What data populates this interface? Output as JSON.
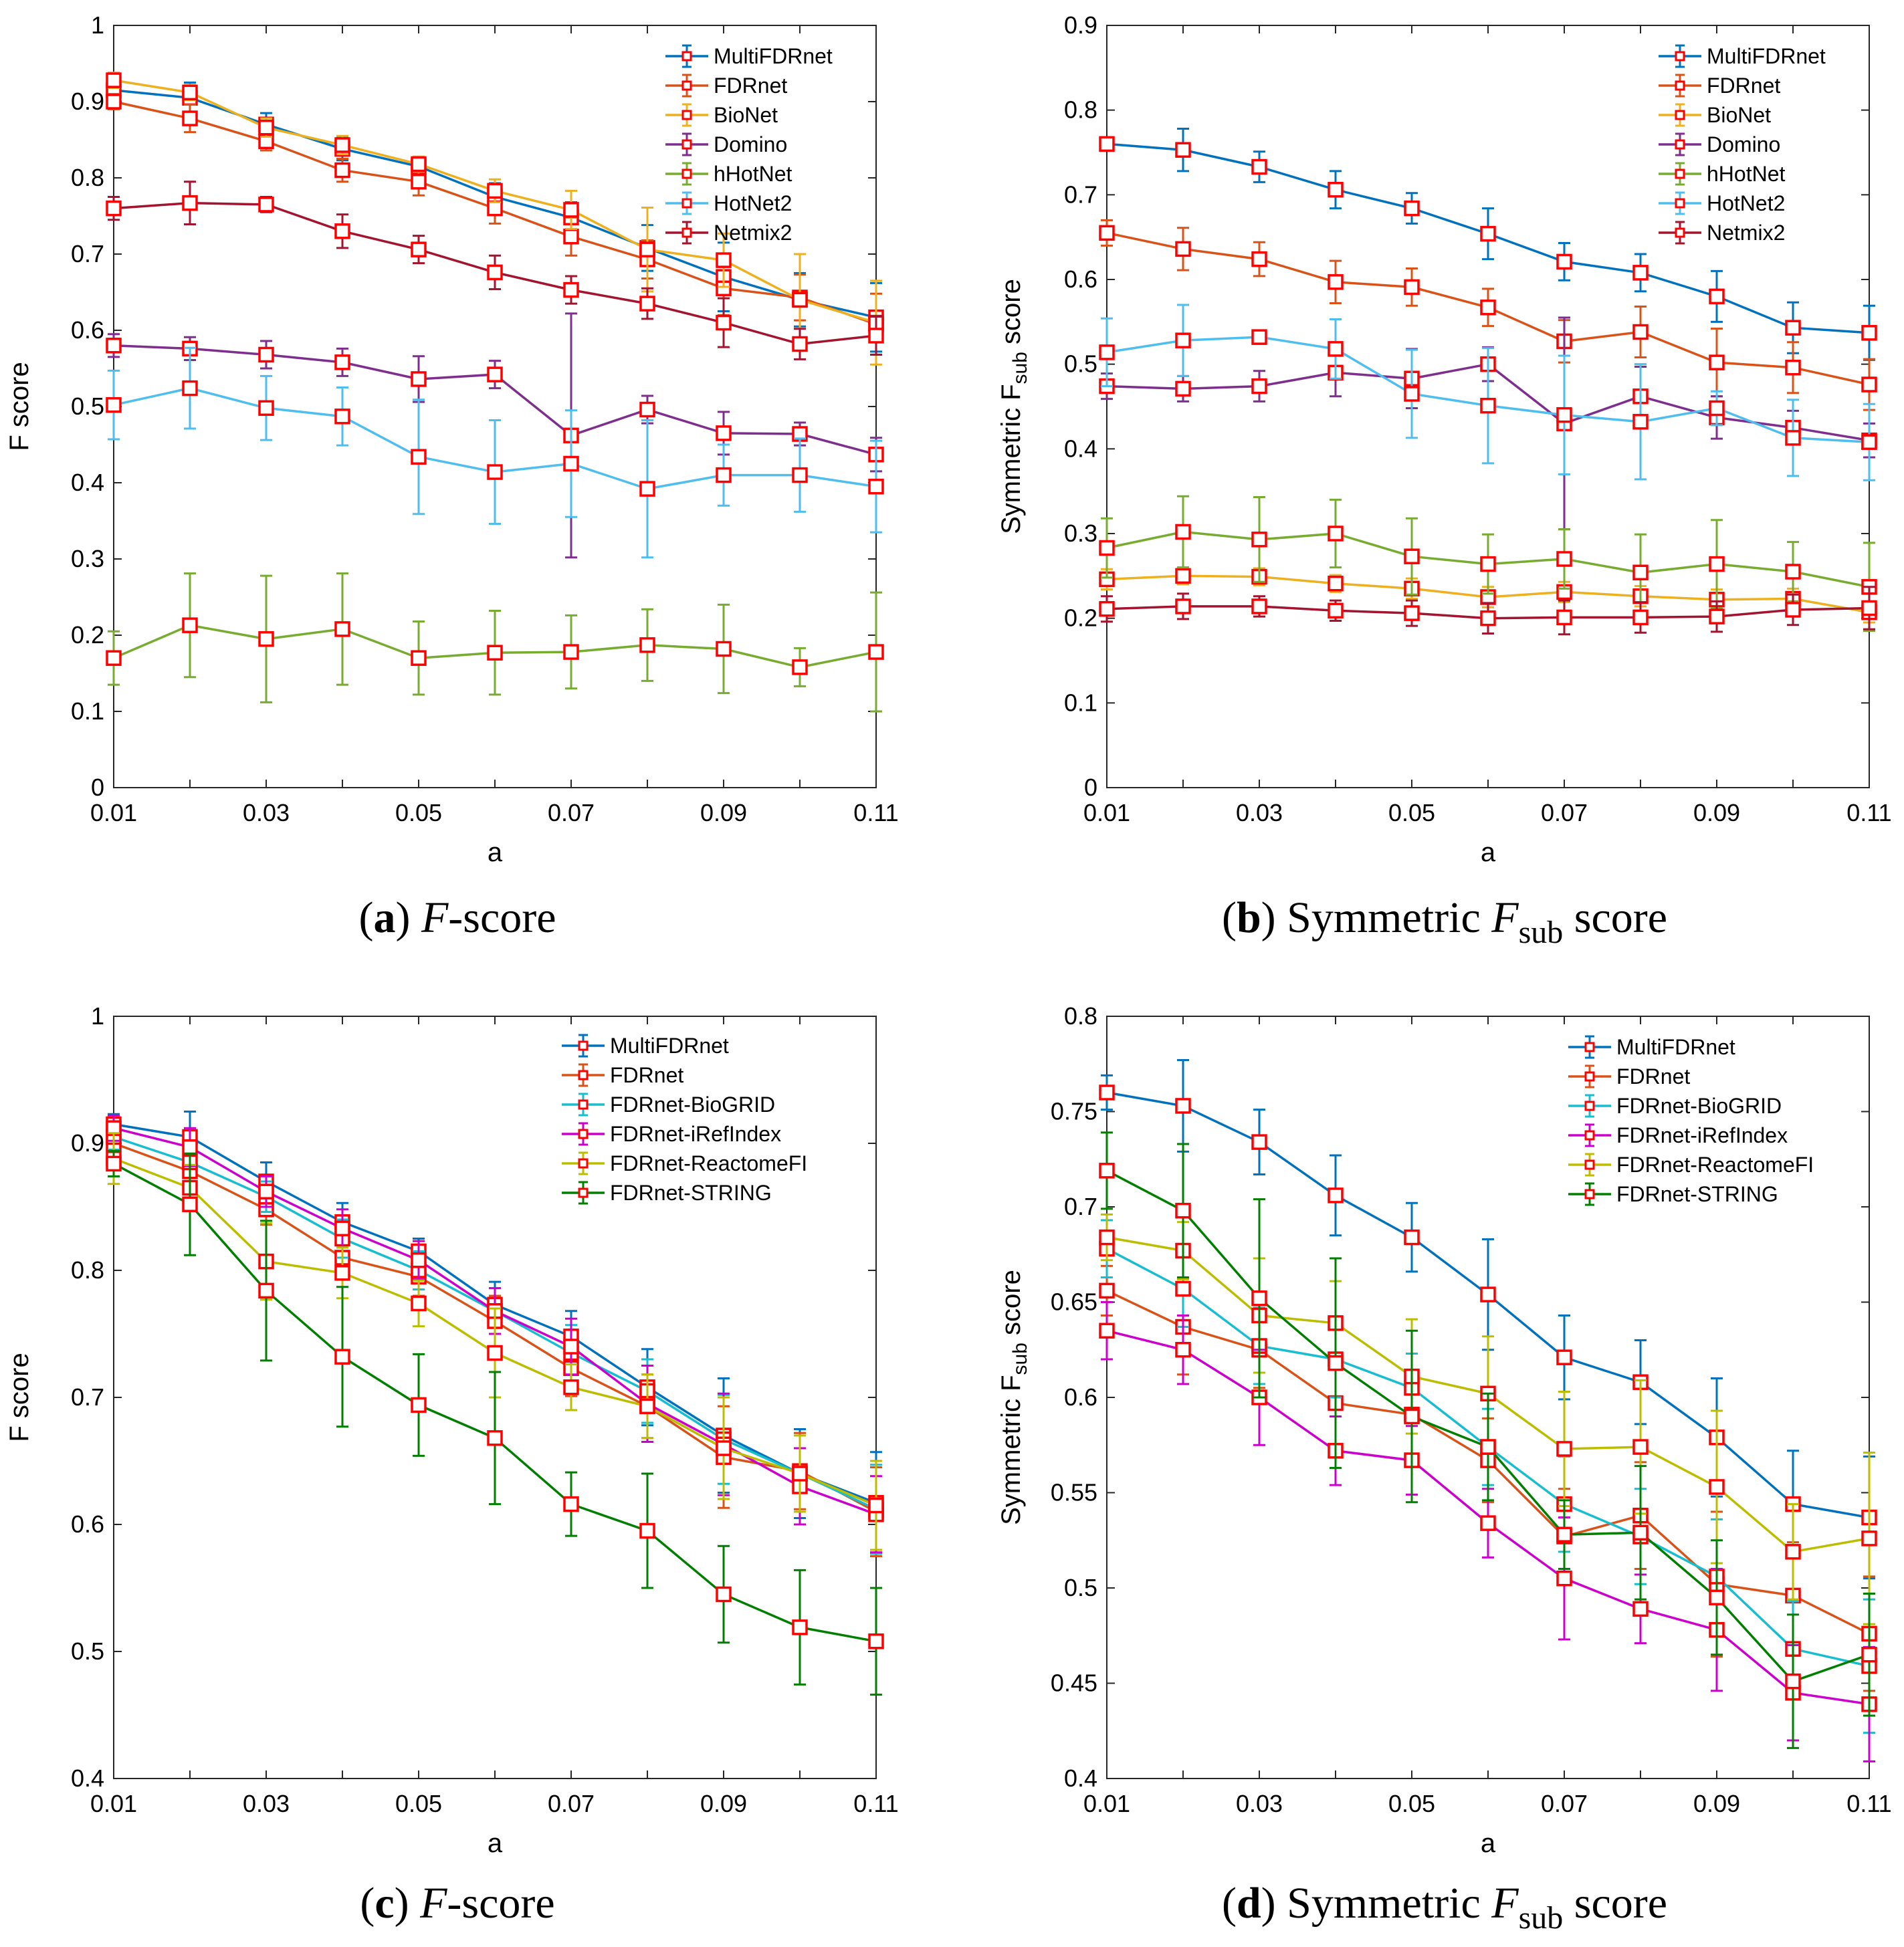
{
  "colors": {
    "MultiFDRnet": "#0072BD",
    "FDRnet": "#D95319",
    "BioNet": "#EDB120",
    "Domino": "#7E2F8E",
    "hHotNet": "#77AC30",
    "HotNet2": "#4DBEEE",
    "Netmix2": "#A2142F",
    "FDRnet-BioGRID": "#17BECF",
    "FDRnet-iRefIndex": "#CC00CC",
    "FDRnet-ReactomeFI": "#BDBD00",
    "FDRnet-STRING": "#007F00",
    "marker": "#FF0000"
  },
  "chart_data": [
    {
      "type": "line",
      "panel": "a",
      "caption_label": "(a)",
      "caption_text": "F-score",
      "xlabel": "a",
      "ylabel": "F score",
      "xlim": [
        0.01,
        0.11
      ],
      "ylim": [
        0,
        1
      ],
      "xticks": [
        "0.01",
        "0.03",
        "0.05",
        "0.07",
        "0.09",
        "0.11"
      ],
      "yticks": [
        "0",
        "0.1",
        "0.2",
        "0.3",
        "0.4",
        "0.5",
        "0.6",
        "0.7",
        "0.8",
        "0.9",
        "1"
      ],
      "legend_position": "top-right",
      "x": [
        0.01,
        0.02,
        0.03,
        0.04,
        0.05,
        0.06,
        0.07,
        0.08,
        0.09,
        0.1,
        0.11
      ],
      "series": [
        {
          "name": "MultiFDRnet",
          "values": [
            0.915,
            0.905,
            0.87,
            0.838,
            0.815,
            0.775,
            0.748,
            0.708,
            0.67,
            0.64,
            0.617
          ],
          "errors": [
            0.01,
            0.02,
            0.015,
            0.015,
            0.012,
            0.018,
            0.02,
            0.03,
            0.045,
            0.035,
            0.045
          ]
        },
        {
          "name": "FDRnet",
          "values": [
            0.9,
            0.878,
            0.848,
            0.81,
            0.795,
            0.76,
            0.723,
            0.693,
            0.655,
            0.643,
            0.608
          ],
          "errors": [
            0.01,
            0.018,
            0.012,
            0.015,
            0.018,
            0.02,
            0.025,
            0.025,
            0.035,
            0.03,
            0.04
          ]
        },
        {
          "name": "BioNet",
          "values": [
            0.928,
            0.912,
            0.866,
            0.843,
            0.818,
            0.783,
            0.758,
            0.706,
            0.692,
            0.64,
            0.61
          ],
          "errors": [
            0.01,
            0.01,
            0.012,
            0.012,
            0.01,
            0.015,
            0.025,
            0.055,
            0.035,
            0.06,
            0.055
          ]
        },
        {
          "name": "Domino",
          "values": [
            0.58,
            0.576,
            0.568,
            0.558,
            0.536,
            0.542,
            0.462,
            0.496,
            0.465,
            0.464,
            0.437
          ],
          "errors": [
            0.015,
            0.015,
            0.018,
            0.018,
            0.03,
            0.018,
            0.16,
            0.018,
            0.028,
            0.015,
            0.022
          ]
        },
        {
          "name": "hHotNet",
          "values": [
            0.17,
            0.213,
            0.195,
            0.208,
            0.17,
            0.177,
            0.178,
            0.187,
            0.182,
            0.158,
            0.178
          ],
          "errors": [
            0.035,
            0.068,
            0.083,
            0.073,
            0.048,
            0.055,
            0.048,
            0.047,
            0.058,
            0.025,
            0.078
          ]
        },
        {
          "name": "HotNet2",
          "values": [
            0.502,
            0.524,
            0.498,
            0.487,
            0.434,
            0.414,
            0.425,
            0.392,
            0.41,
            0.41,
            0.395
          ],
          "errors": [
            0.045,
            0.053,
            0.042,
            0.038,
            0.075,
            0.068,
            0.07,
            0.09,
            0.04,
            0.048,
            0.06
          ]
        },
        {
          "name": "Netmix2",
          "values": [
            0.76,
            0.767,
            0.765,
            0.73,
            0.706,
            0.676,
            0.653,
            0.635,
            0.61,
            0.582,
            0.593
          ],
          "errors": [
            0.015,
            0.028,
            0.01,
            0.022,
            0.018,
            0.022,
            0.018,
            0.02,
            0.032,
            0.02,
            0.025
          ]
        }
      ]
    },
    {
      "type": "line",
      "panel": "b",
      "caption_label": "(b)",
      "caption_text": "Symmetric F",
      "caption_sub": "sub",
      "caption_tail": "score",
      "xlabel": "a",
      "ylabel": "Symmetric F",
      "ylabel_sub": "sub",
      "ylabel_tail": "score",
      "xlim": [
        0.01,
        0.11
      ],
      "ylim": [
        0,
        0.9
      ],
      "xticks": [
        "0.01",
        "0.03",
        "0.05",
        "0.07",
        "0.09",
        "0.11"
      ],
      "yticks": [
        "0",
        "0.1",
        "0.2",
        "0.3",
        "0.4",
        "0.5",
        "0.6",
        "0.7",
        "0.8",
        "0.9"
      ],
      "legend_position": "top-right",
      "x": [
        0.01,
        0.02,
        0.03,
        0.04,
        0.05,
        0.06,
        0.07,
        0.08,
        0.09,
        0.1,
        0.11
      ],
      "series": [
        {
          "name": "MultiFDRnet",
          "values": [
            0.76,
            0.753,
            0.733,
            0.706,
            0.684,
            0.654,
            0.621,
            0.608,
            0.58,
            0.543,
            0.537
          ],
          "errors": [
            0.008,
            0.025,
            0.018,
            0.022,
            0.018,
            0.03,
            0.022,
            0.022,
            0.03,
            0.03,
            0.032
          ]
        },
        {
          "name": "FDRnet",
          "values": [
            0.655,
            0.636,
            0.624,
            0.597,
            0.591,
            0.567,
            0.527,
            0.538,
            0.502,
            0.496,
            0.476
          ],
          "errors": [
            0.015,
            0.025,
            0.02,
            0.025,
            0.022,
            0.022,
            0.025,
            0.03,
            0.04,
            0.03,
            0.03
          ]
        },
        {
          "name": "BioNet",
          "values": [
            0.246,
            0.25,
            0.249,
            0.241,
            0.235,
            0.225,
            0.231,
            0.226,
            0.222,
            0.223,
            0.207
          ],
          "errors": [
            0.012,
            0.01,
            0.01,
            0.01,
            0.012,
            0.012,
            0.012,
            0.012,
            0.012,
            0.012,
            0.012
          ]
        },
        {
          "name": "Domino",
          "values": [
            0.474,
            0.471,
            0.474,
            0.49,
            0.483,
            0.5,
            0.43,
            0.462,
            0.437,
            0.425,
            0.41
          ],
          "errors": [
            0.015,
            0.015,
            0.018,
            0.028,
            0.035,
            0.02,
            0.125,
            0.035,
            0.025,
            0.02,
            0.02
          ]
        },
        {
          "name": "hHotNet",
          "values": [
            0.283,
            0.302,
            0.293,
            0.3,
            0.273,
            0.264,
            0.27,
            0.254,
            0.264,
            0.255,
            0.237
          ],
          "errors": [
            0.035,
            0.042,
            0.05,
            0.04,
            0.045,
            0.035,
            0.035,
            0.045,
            0.052,
            0.035,
            0.052
          ]
        },
        {
          "name": "HotNet2",
          "values": [
            0.514,
            0.528,
            0.532,
            0.518,
            0.465,
            0.451,
            0.44,
            0.432,
            0.448,
            0.413,
            0.408
          ],
          "errors": [
            0.04,
            0.042,
            0.008,
            0.035,
            0.052,
            0.068,
            0.07,
            0.068,
            0.02,
            0.045,
            0.045
          ]
        },
        {
          "name": "Netmix2",
          "values": [
            0.211,
            0.214,
            0.214,
            0.209,
            0.206,
            0.2,
            0.201,
            0.201,
            0.202,
            0.21,
            0.212
          ],
          "errors": [
            0.015,
            0.015,
            0.012,
            0.012,
            0.015,
            0.018,
            0.02,
            0.018,
            0.018,
            0.018,
            0.025
          ]
        }
      ]
    },
    {
      "type": "line",
      "panel": "c",
      "caption_label": "(c)",
      "caption_text": "F-score",
      "xlabel": "a",
      "ylabel": "F score",
      "xlim": [
        0.01,
        0.11
      ],
      "ylim": [
        0.4,
        1
      ],
      "xticks": [
        "0.01",
        "0.03",
        "0.05",
        "0.07",
        "0.09",
        "0.11"
      ],
      "yticks": [
        "0.4",
        "0.5",
        "0.6",
        "0.7",
        "0.8",
        "0.9",
        "1"
      ],
      "legend_position": "top-right",
      "x": [
        0.01,
        0.02,
        0.03,
        0.04,
        0.05,
        0.06,
        0.07,
        0.08,
        0.09,
        0.1,
        0.11
      ],
      "series": [
        {
          "name": "MultiFDRnet",
          "values": [
            0.915,
            0.905,
            0.87,
            0.838,
            0.815,
            0.773,
            0.748,
            0.708,
            0.67,
            0.64,
            0.617
          ],
          "errors": [
            0.008,
            0.02,
            0.015,
            0.015,
            0.01,
            0.018,
            0.02,
            0.03,
            0.045,
            0.035,
            0.04
          ]
        },
        {
          "name": "FDRnet",
          "values": [
            0.9,
            0.878,
            0.848,
            0.81,
            0.795,
            0.76,
            0.723,
            0.693,
            0.653,
            0.642,
            0.61
          ],
          "errors": [
            0.01,
            0.018,
            0.012,
            0.015,
            0.015,
            0.02,
            0.022,
            0.025,
            0.04,
            0.03,
            0.035
          ]
        },
        {
          "name": "FDRnet-BioGRID",
          "values": [
            0.905,
            0.885,
            0.858,
            0.825,
            0.8,
            0.768,
            0.735,
            0.705,
            0.667,
            0.64,
            0.612
          ],
          "errors": [
            0.01,
            0.015,
            0.012,
            0.015,
            0.015,
            0.018,
            0.022,
            0.025,
            0.035,
            0.03,
            0.035
          ]
        },
        {
          "name": "FDRnet-iRefIndex",
          "values": [
            0.912,
            0.897,
            0.862,
            0.833,
            0.808,
            0.768,
            0.74,
            0.695,
            0.663,
            0.63,
            0.608
          ],
          "errors": [
            0.01,
            0.015,
            0.012,
            0.015,
            0.015,
            0.018,
            0.022,
            0.03,
            0.04,
            0.03,
            0.03
          ]
        },
        {
          "name": "FDRnet-ReactomeFI",
          "values": [
            0.888,
            0.865,
            0.807,
            0.798,
            0.774,
            0.735,
            0.708,
            0.693,
            0.66,
            0.64,
            0.615
          ],
          "errors": [
            0.02,
            0.018,
            0.03,
            0.02,
            0.018,
            0.035,
            0.018,
            0.025,
            0.04,
            0.03,
            0.035
          ]
        },
        {
          "name": "FDRnet-STRING",
          "values": [
            0.884,
            0.852,
            0.784,
            0.732,
            0.694,
            0.668,
            0.616,
            0.595,
            0.545,
            0.519,
            0.508
          ],
          "errors": [
            0.01,
            0.04,
            0.055,
            0.055,
            0.04,
            0.052,
            0.025,
            0.045,
            0.038,
            0.045,
            0.042
          ]
        }
      ]
    },
    {
      "type": "line",
      "panel": "d",
      "caption_label": "(d)",
      "caption_text": "Symmetric F",
      "caption_sub": "sub",
      "caption_tail": "score",
      "xlabel": "a",
      "ylabel": "Symmetric F",
      "ylabel_sub": "sub",
      "ylabel_tail": "score",
      "xlim": [
        0.01,
        0.11
      ],
      "ylim": [
        0.4,
        0.8
      ],
      "xticks": [
        "0.01",
        "0.03",
        "0.05",
        "0.07",
        "0.09",
        "0.11"
      ],
      "yticks": [
        "0.4",
        "0.45",
        "0.5",
        "0.55",
        "0.6",
        "0.65",
        "0.7",
        "0.75",
        "0.8"
      ],
      "legend_position": "top-right",
      "x": [
        0.01,
        0.02,
        0.03,
        0.04,
        0.05,
        0.06,
        0.07,
        0.08,
        0.09,
        0.1,
        0.11
      ],
      "series": [
        {
          "name": "MultiFDRnet",
          "values": [
            0.76,
            0.753,
            0.734,
            0.706,
            0.684,
            0.654,
            0.621,
            0.608,
            0.579,
            0.544,
            0.537
          ],
          "errors": [
            0.009,
            0.024,
            0.017,
            0.021,
            0.018,
            0.029,
            0.022,
            0.022,
            0.031,
            0.028,
            0.032
          ]
        },
        {
          "name": "FDRnet",
          "values": [
            0.656,
            0.637,
            0.625,
            0.597,
            0.591,
            0.567,
            0.527,
            0.538,
            0.502,
            0.496,
            0.476
          ],
          "errors": [
            0.013,
            0.025,
            0.02,
            0.025,
            0.022,
            0.022,
            0.025,
            0.028,
            0.038,
            0.028,
            0.03
          ]
        },
        {
          "name": "FDRnet-BioGRID",
          "values": [
            0.678,
            0.657,
            0.627,
            0.62,
            0.605,
            0.574,
            0.544,
            0.527,
            0.506,
            0.468,
            0.459
          ],
          "errors": [
            0.015,
            0.02,
            0.02,
            0.02,
            0.018,
            0.02,
            0.025,
            0.025,
            0.03,
            0.025,
            0.035
          ]
        },
        {
          "name": "FDRnet-iRefIndex",
          "values": [
            0.635,
            0.625,
            0.6,
            0.572,
            0.567,
            0.534,
            0.505,
            0.489,
            0.478,
            0.445,
            0.439
          ],
          "errors": [
            0.015,
            0.018,
            0.025,
            0.018,
            0.018,
            0.018,
            0.032,
            0.018,
            0.032,
            0.025,
            0.03
          ]
        },
        {
          "name": "FDRnet-ReactomeFI",
          "values": [
            0.684,
            0.677,
            0.643,
            0.639,
            0.611,
            0.602,
            0.573,
            0.574,
            0.553,
            0.519,
            0.526
          ],
          "errors": [
            0.012,
            0.015,
            0.03,
            0.022,
            0.03,
            0.03,
            0.03,
            0.035,
            0.04,
            0.025,
            0.045
          ]
        },
        {
          "name": "FDRnet-STRING",
          "values": [
            0.719,
            0.698,
            0.652,
            0.618,
            0.59,
            0.574,
            0.528,
            0.529,
            0.495,
            0.451,
            0.465
          ],
          "errors": [
            0.02,
            0.035,
            0.052,
            0.055,
            0.045,
            0.028,
            0.018,
            0.035,
            0.03,
            0.035,
            0.032
          ]
        }
      ]
    }
  ]
}
